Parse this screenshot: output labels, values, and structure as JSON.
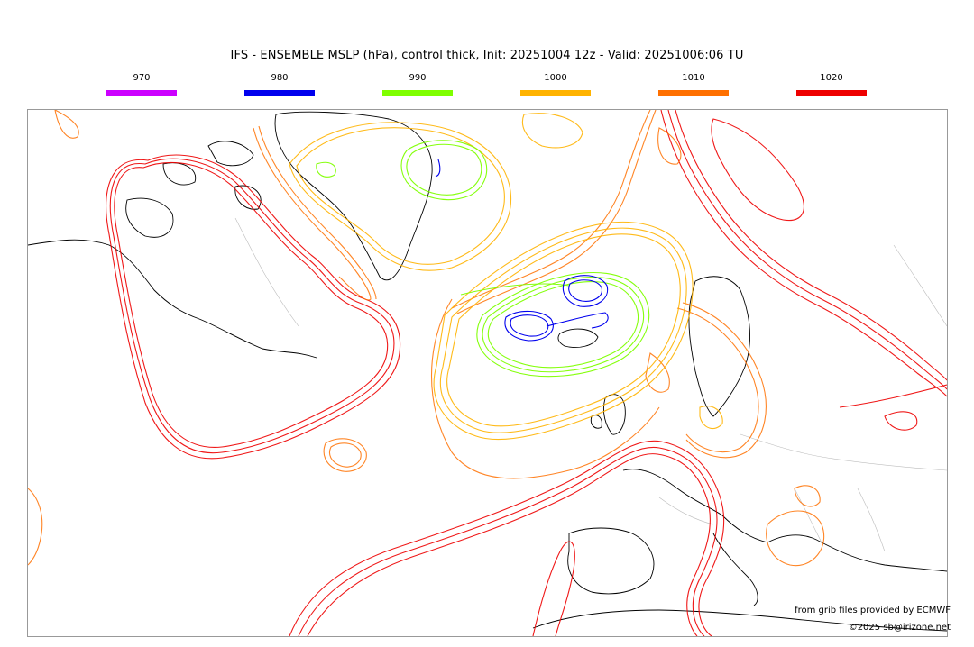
{
  "title": "IFS - ENSEMBLE MSLP (hPa), control thick, Init: 20251004 12z - Valid: 20251006:06 TU",
  "legend": [
    {
      "label": "970",
      "color": "#cc00ff"
    },
    {
      "label": "980",
      "color": "#0000ee"
    },
    {
      "label": "990",
      "color": "#7fff00"
    },
    {
      "label": "1000",
      "color": "#ffb300"
    },
    {
      "label": "1010",
      "color": "#ff7000"
    },
    {
      "label": "1020",
      "color": "#ee0000"
    }
  ],
  "credits": {
    "source": "from grib files provided by ECMWF",
    "copyright": "©2025 sb@irizone.net"
  }
}
